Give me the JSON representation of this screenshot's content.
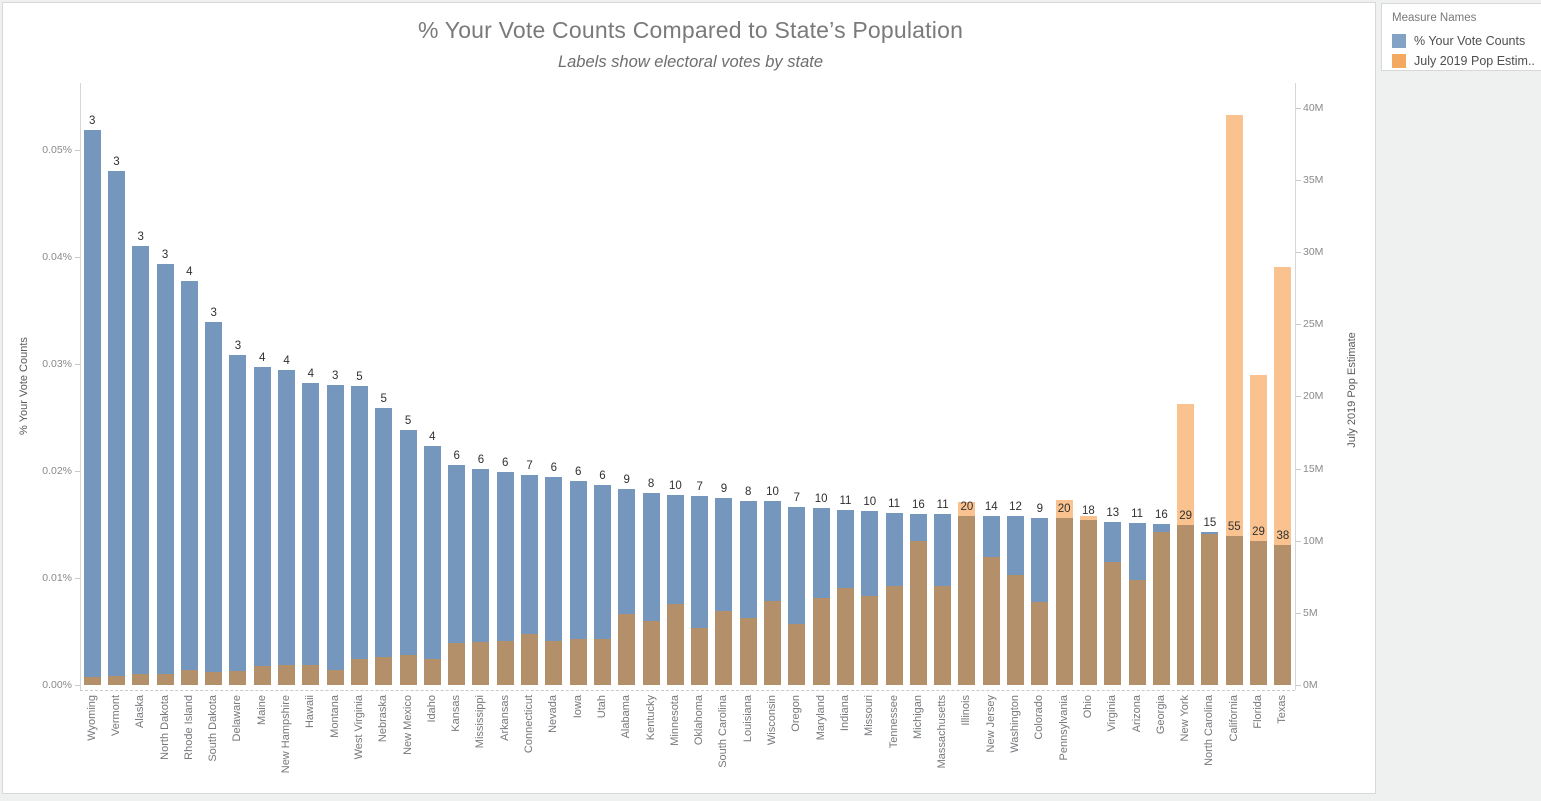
{
  "page": {
    "background": "#eff0f0"
  },
  "chart_data": {
    "type": "bar",
    "dual_axis": true,
    "title": "% Your Vote Counts Compared to State’s Population",
    "subtitle": "Labels show electoral votes by state",
    "legend": {
      "title": "Measure Names",
      "items": [
        {
          "label": "% Your Vote Counts",
          "color": "#82a3c6"
        },
        {
          "label": "July 2019 Pop Estim..",
          "color": "#f3a960"
        }
      ]
    },
    "left_axis": {
      "title": "% Your Vote Counts",
      "ticks": [
        "0.00%",
        "0.01%",
        "0.02%",
        "0.03%",
        "0.04%",
        "0.05%"
      ],
      "range": [
        0,
        0.0563
      ],
      "grid": false
    },
    "right_axis": {
      "title": "July 2019 Pop Estimate",
      "ticks": [
        "0M",
        "5M",
        "10M",
        "15M",
        "20M",
        "25M",
        "30M",
        "35M",
        "40M"
      ],
      "range": [
        0,
        41.7
      ],
      "grid": false
    },
    "series": [
      {
        "name": "% Your Vote Counts",
        "axis": "left",
        "bar_color": "#7697bd"
      },
      {
        "name": "July 2019 Pop Estimate",
        "axis": "right",
        "bar_color": "#f9c28e"
      }
    ],
    "overlap_color": "#b4906a",
    "bar_labels": "electoral_votes",
    "states": [
      {
        "name": "Wyoming",
        "electoral_votes": 3,
        "pct_vote_counts": 0.05184,
        "pop_millions": 0.579
      },
      {
        "name": "Vermont",
        "electoral_votes": 3,
        "pct_vote_counts": 0.04808,
        "pop_millions": 0.624
      },
      {
        "name": "Alaska",
        "electoral_votes": 3,
        "pct_vote_counts": 0.04101,
        "pop_millions": 0.732
      },
      {
        "name": "North Dakota",
        "electoral_votes": 3,
        "pct_vote_counts": 0.03937,
        "pop_millions": 0.762
      },
      {
        "name": "Rhode Island",
        "electoral_votes": 4,
        "pct_vote_counts": 0.03776,
        "pop_millions": 1.059
      },
      {
        "name": "South Dakota",
        "electoral_votes": 3,
        "pct_vote_counts": 0.03391,
        "pop_millions": 0.885
      },
      {
        "name": "Delaware",
        "electoral_votes": 3,
        "pct_vote_counts": 0.03081,
        "pop_millions": 0.974
      },
      {
        "name": "Maine",
        "electoral_votes": 4,
        "pct_vote_counts": 0.02976,
        "pop_millions": 1.344
      },
      {
        "name": "New Hampshire",
        "electoral_votes": 4,
        "pct_vote_counts": 0.02942,
        "pop_millions": 1.36
      },
      {
        "name": "Hawaii",
        "electoral_votes": 4,
        "pct_vote_counts": 0.02825,
        "pop_millions": 1.416
      },
      {
        "name": "Montana",
        "electoral_votes": 3,
        "pct_vote_counts": 0.02807,
        "pop_millions": 1.069
      },
      {
        "name": "West Virginia",
        "electoral_votes": 5,
        "pct_vote_counts": 0.0279,
        "pop_millions": 1.792
      },
      {
        "name": "Nebraska",
        "electoral_votes": 5,
        "pct_vote_counts": 0.02585,
        "pop_millions": 1.934
      },
      {
        "name": "New Mexico",
        "electoral_votes": 5,
        "pct_vote_counts": 0.02385,
        "pop_millions": 2.097
      },
      {
        "name": "Idaho",
        "electoral_votes": 4,
        "pct_vote_counts": 0.02238,
        "pop_millions": 1.787
      },
      {
        "name": "Kansas",
        "electoral_votes": 6,
        "pct_vote_counts": 0.0206,
        "pop_millions": 2.913
      },
      {
        "name": "Mississippi",
        "electoral_votes": 6,
        "pct_vote_counts": 0.02016,
        "pop_millions": 2.976
      },
      {
        "name": "Arkansas",
        "electoral_votes": 6,
        "pct_vote_counts": 0.01988,
        "pop_millions": 3.018
      },
      {
        "name": "Connecticut",
        "electoral_votes": 7,
        "pct_vote_counts": 0.01963,
        "pop_millions": 3.565
      },
      {
        "name": "Nevada",
        "electoral_votes": 6,
        "pct_vote_counts": 0.01948,
        "pop_millions": 3.08
      },
      {
        "name": "Iowa",
        "electoral_votes": 6,
        "pct_vote_counts": 0.01902,
        "pop_millions": 3.155
      },
      {
        "name": "Utah",
        "electoral_votes": 6,
        "pct_vote_counts": 0.01872,
        "pop_millions": 3.206
      },
      {
        "name": "Alabama",
        "electoral_votes": 9,
        "pct_vote_counts": 0.01836,
        "pop_millions": 4.903
      },
      {
        "name": "Kentucky",
        "electoral_votes": 8,
        "pct_vote_counts": 0.01791,
        "pop_millions": 4.468
      },
      {
        "name": "Minnesota",
        "electoral_votes": 10,
        "pct_vote_counts": 0.01773,
        "pop_millions": 5.64
      },
      {
        "name": "Oklahoma",
        "electoral_votes": 7,
        "pct_vote_counts": 0.01769,
        "pop_millions": 3.957
      },
      {
        "name": "South Carolina",
        "electoral_votes": 9,
        "pct_vote_counts": 0.01748,
        "pop_millions": 5.149
      },
      {
        "name": "Louisiana",
        "electoral_votes": 8,
        "pct_vote_counts": 0.01721,
        "pop_millions": 4.649
      },
      {
        "name": "Wisconsin",
        "electoral_votes": 10,
        "pct_vote_counts": 0.01718,
        "pop_millions": 5.822
      },
      {
        "name": "Oregon",
        "electoral_votes": 7,
        "pct_vote_counts": 0.0166,
        "pop_millions": 4.218
      },
      {
        "name": "Maryland",
        "electoral_votes": 10,
        "pct_vote_counts": 0.01654,
        "pop_millions": 6.046
      },
      {
        "name": "Indiana",
        "electoral_votes": 11,
        "pct_vote_counts": 0.01634,
        "pop_millions": 6.732
      },
      {
        "name": "Missouri",
        "electoral_votes": 10,
        "pct_vote_counts": 0.01629,
        "pop_millions": 6.137
      },
      {
        "name": "Tennessee",
        "electoral_votes": 11,
        "pct_vote_counts": 0.01611,
        "pop_millions": 6.829
      },
      {
        "name": "Michigan",
        "electoral_votes": 16,
        "pct_vote_counts": 0.01602,
        "pop_millions": 9.987
      },
      {
        "name": "Massachusetts",
        "electoral_votes": 11,
        "pct_vote_counts": 0.01596,
        "pop_millions": 6.893
      },
      {
        "name": "Illinois",
        "electoral_votes": 20,
        "pct_vote_counts": 0.01578,
        "pop_millions": 12.672
      },
      {
        "name": "New Jersey",
        "electoral_votes": 14,
        "pct_vote_counts": 0.01576,
        "pop_millions": 8.882
      },
      {
        "name": "Washington",
        "electoral_votes": 12,
        "pct_vote_counts": 0.01576,
        "pop_millions": 7.615
      },
      {
        "name": "Colorado",
        "electoral_votes": 9,
        "pct_vote_counts": 0.01563,
        "pop_millions": 5.759
      },
      {
        "name": "Pennsylvania",
        "electoral_votes": 20,
        "pct_vote_counts": 0.01562,
        "pop_millions": 12.802
      },
      {
        "name": "Ohio",
        "electoral_votes": 18,
        "pct_vote_counts": 0.0154,
        "pop_millions": 11.689
      },
      {
        "name": "Virginia",
        "electoral_votes": 13,
        "pct_vote_counts": 0.01523,
        "pop_millions": 8.536
      },
      {
        "name": "Arizona",
        "electoral_votes": 11,
        "pct_vote_counts": 0.01511,
        "pop_millions": 7.279
      },
      {
        "name": "Georgia",
        "electoral_votes": 16,
        "pct_vote_counts": 0.01507,
        "pop_millions": 10.617
      },
      {
        "name": "New York",
        "electoral_votes": 29,
        "pct_vote_counts": 0.01491,
        "pop_millions": 19.454
      },
      {
        "name": "North Carolina",
        "electoral_votes": 15,
        "pct_vote_counts": 0.0143,
        "pop_millions": 10.488
      },
      {
        "name": "California",
        "electoral_votes": 55,
        "pct_vote_counts": 0.01392,
        "pop_millions": 39.512
      },
      {
        "name": "Florida",
        "electoral_votes": 29,
        "pct_vote_counts": 0.0135,
        "pop_millions": 21.478
      },
      {
        "name": "Texas",
        "electoral_votes": 38,
        "pct_vote_counts": 0.0131,
        "pop_millions": 28.996
      }
    ]
  }
}
